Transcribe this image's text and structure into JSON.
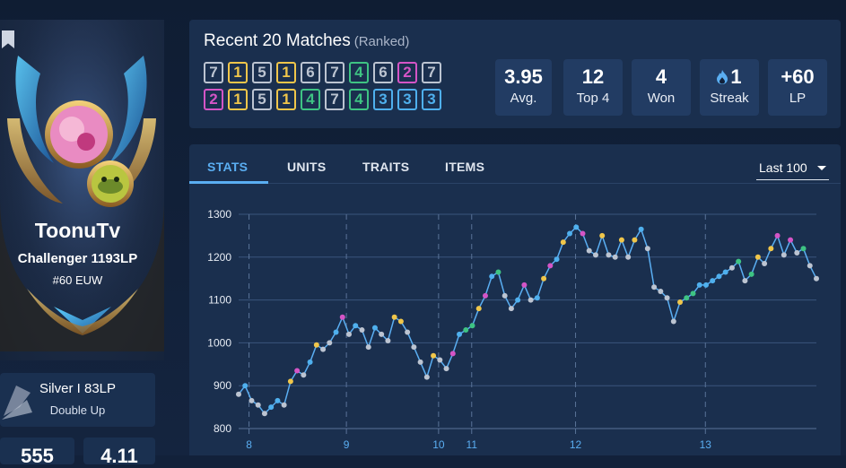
{
  "profile": {
    "name": "ToonuTv",
    "rank": "Challenger 1193LP",
    "region": "#60 EUW"
  },
  "doubleup": {
    "rank": "Silver I 83LP",
    "mode": "Double Up"
  },
  "mini_cards": [
    "555",
    "4.11"
  ],
  "matches": {
    "title": "Recent 20 Matches",
    "subtitle": "(Ranked)",
    "placements_row1": [
      "7",
      "1",
      "5",
      "1",
      "6",
      "7",
      "4",
      "6",
      "2",
      "7"
    ],
    "placements_row2": [
      "2",
      "1",
      "5",
      "1",
      "4",
      "7",
      "4",
      "3",
      "3",
      "3"
    ]
  },
  "placement_colors": {
    "1": "#f0c64a",
    "2": "#d455c6",
    "3": "#4fb0ee",
    "4": "#3ec383",
    "5": "#bcc4d1",
    "6": "#bcc4d1",
    "7": "#bcc4d1",
    "8": "#bcc4d1"
  },
  "summary": [
    {
      "value": "3.95",
      "label": "Avg."
    },
    {
      "value": "12",
      "label": "Top 4"
    },
    {
      "value": "4",
      "label": "Won"
    },
    {
      "value": "1",
      "label": "Streak",
      "icon": "flame-icon"
    },
    {
      "value": "+60",
      "label": "LP"
    }
  ],
  "tabs": [
    "STATS",
    "UNITS",
    "TRAITS",
    "ITEMS"
  ],
  "range_select": "Last 100",
  "colors": {
    "accent": "#5aaef2",
    "panel": "#1a2f4e",
    "line": "#5aaef2"
  },
  "chart_data": {
    "type": "line",
    "ylim": [
      800,
      1300
    ],
    "yticks": [
      800,
      900,
      1000,
      1100,
      1200,
      1300
    ],
    "xticks": [
      {
        "label": "8",
        "x": 1.6
      },
      {
        "label": "9",
        "x": 16.6
      },
      {
        "label": "10",
        "x": 30.8
      },
      {
        "label": "11",
        "x": 35.9
      },
      {
        "label": "12",
        "x": 51.9
      },
      {
        "label": "13",
        "x": 71.9
      }
    ],
    "grid": true,
    "series": [
      {
        "x": [
          0,
          1,
          2,
          3,
          4,
          5,
          6,
          7,
          8,
          9,
          10,
          11,
          12,
          13,
          14,
          15,
          16,
          17,
          18,
          19,
          20,
          21,
          22,
          23,
          24,
          25,
          26,
          27,
          28,
          29,
          30,
          31,
          32,
          33,
          34,
          35,
          36,
          37,
          38,
          39,
          40,
          41,
          42,
          43,
          44,
          45,
          46,
          47,
          48,
          49,
          50,
          51,
          52,
          53,
          54,
          55,
          56,
          57,
          58,
          59,
          60,
          61,
          62,
          63,
          64,
          65,
          66,
          67,
          68,
          69,
          70,
          71,
          72,
          73,
          74,
          75,
          76,
          77,
          78,
          79,
          80,
          81,
          82,
          83,
          84,
          85,
          86,
          87,
          88,
          89
        ],
        "y": [
          880,
          900,
          865,
          855,
          835,
          850,
          865,
          855,
          910,
          935,
          925,
          955,
          995,
          985,
          1000,
          1025,
          1060,
          1020,
          1040,
          1030,
          990,
          1035,
          1020,
          1005,
          1060,
          1050,
          1025,
          990,
          955,
          920,
          970,
          960,
          940,
          975,
          1020,
          1030,
          1040,
          1080,
          1110,
          1155,
          1165,
          1110,
          1080,
          1100,
          1135,
          1100,
          1105,
          1150,
          1180,
          1195,
          1235,
          1255,
          1270,
          1255,
          1215,
          1205,
          1250,
          1205,
          1200,
          1240,
          1200,
          1240,
          1265,
          1220,
          1130,
          1120,
          1105,
          1050,
          1095,
          1105,
          1115,
          1135,
          1135,
          1145,
          1155,
          1165,
          1175,
          1190,
          1145,
          1160,
          1200,
          1185,
          1220,
          1250,
          1205,
          1240,
          1210,
          1220,
          1180,
          1150
        ],
        "categories_per_point": [
          7,
          3,
          7,
          7,
          7,
          3,
          3,
          7,
          1,
          2,
          7,
          3,
          1,
          7,
          7,
          3,
          2,
          7,
          3,
          7,
          7,
          3,
          7,
          7,
          1,
          1,
          7,
          7,
          7,
          7,
          1,
          7,
          7,
          2,
          3,
          4,
          4,
          1,
          2,
          3,
          4,
          7,
          7,
          3,
          2,
          7,
          3,
          1,
          2,
          3,
          1,
          3,
          3,
          2,
          7,
          7,
          1,
          7,
          7,
          1,
          7,
          1,
          3,
          7,
          7,
          7,
          7,
          7,
          1,
          4,
          4,
          3,
          3,
          3,
          3,
          3,
          7,
          4,
          7,
          4,
          1,
          7,
          1,
          2,
          7,
          2,
          7,
          4,
          7,
          7
        ]
      }
    ]
  }
}
